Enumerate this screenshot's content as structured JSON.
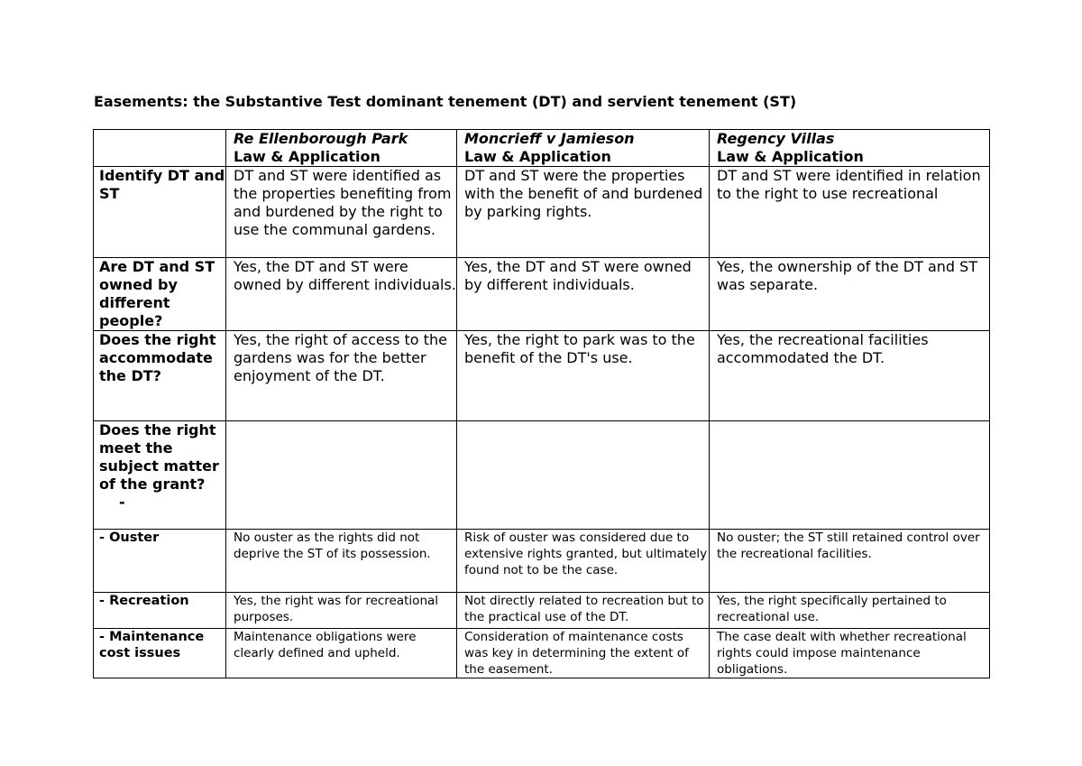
{
  "title": "Easements: the Substantive Test dominant tenement (DT) and servient tenement (ST)",
  "columns": [
    {
      "case": "Re Ellenborough Park",
      "sub": "Law & Application"
    },
    {
      "case": "Moncrieff v Jamieson",
      "sub": "Law & Application"
    },
    {
      "case": "Regency Villas",
      "sub": "Law & Application"
    }
  ],
  "rows": [
    {
      "label": "Identify DT and ST",
      "cells": [
        "DT and ST were identified as the properties benefiting from and burdened by the right to use the communal gardens.",
        "DT and ST were the properties with the benefit of and burdened by parking rights.",
        "DT and ST were identified in relation to the right to use recreational"
      ]
    },
    {
      "label": "Are DT and ST owned by different people?",
      "cells": [
        "Yes, the DT and ST were owned by different individuals.",
        "Yes, the DT and ST were owned by different individuals.",
        "Yes, the ownership of the DT and ST was separate."
      ]
    },
    {
      "label": "Does the right accommodate the DT?",
      "cells": [
        "Yes, the right of access to the gardens was for the better enjoyment of the DT.",
        "Yes, the right to park was to the benefit of the DT's use.",
        "Yes, the recreational facilities accommodated the DT."
      ]
    },
    {
      "label": "Does the right meet the subject matter of the grant?",
      "extra": "-",
      "cells": [
        "",
        "",
        ""
      ]
    },
    {
      "label": "- Ouster",
      "cells": [
        "No ouster as the rights did not deprive the ST of its possession.",
        "Risk of ouster was considered due to extensive rights granted, but ultimately found not to be the case.",
        "No ouster; the ST still retained control over the recreational facilities."
      ]
    },
    {
      "label": "- Recreation",
      "cells": [
        "Yes, the right was for recreational purposes.",
        "Not directly related to recreation but to the practical use of the DT.",
        "Yes, the right specifically pertained to recreational use."
      ]
    },
    {
      "label": "- Maintenance cost issues",
      "cells": [
        "Maintenance obligations were clearly defined and upheld.",
        "Consideration of maintenance costs was key in determining the extent of the easement.",
        "The case dealt with whether recreational rights could impose maintenance obligations."
      ]
    }
  ]
}
